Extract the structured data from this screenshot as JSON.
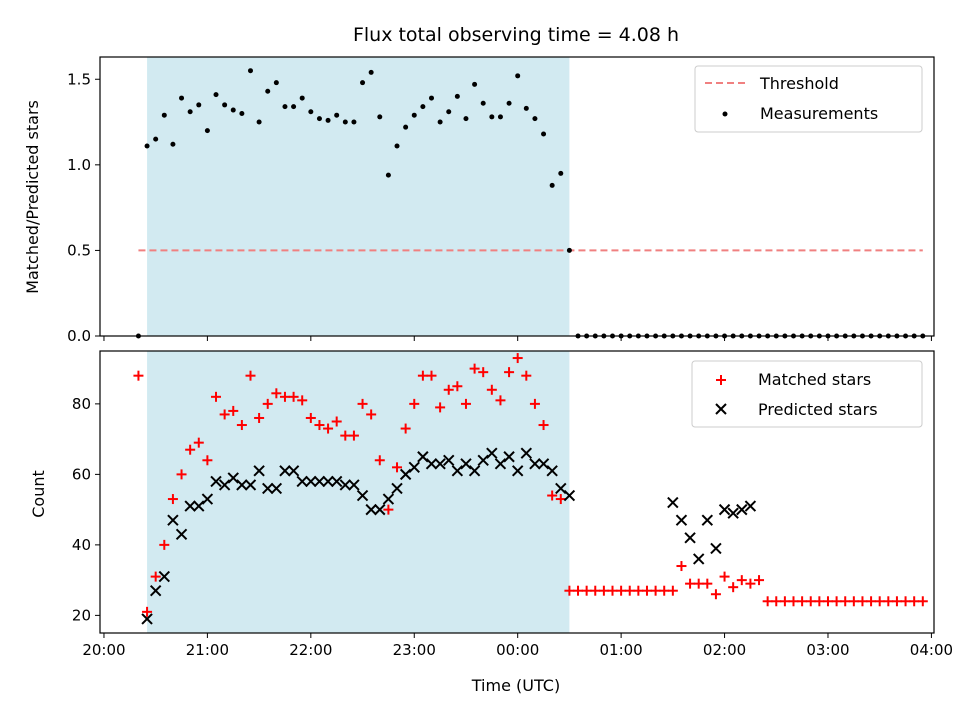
{
  "title": "Flux total observing time = 4.08 h",
  "colors": {
    "threshold": "#f08080",
    "measurements": "#000000",
    "matched": "#ff0000",
    "predicted": "#000000",
    "observing_span": "#add8e6"
  },
  "chart_data": [
    {
      "type": "scatter",
      "ylabel": "Matched/Predicted stars",
      "ylim": [
        0.0,
        1.63
      ],
      "yticks": [
        "0.0",
        "0.5",
        "1.0",
        "1.5"
      ],
      "ytick_values": [
        0.0,
        0.5,
        1.0,
        1.5
      ],
      "xlim": [
        -2.3,
        481.5
      ],
      "observing_span_minutes": [
        25,
        270
      ],
      "legend": {
        "position": "top-right",
        "entries": [
          "Threshold",
          "Measurements"
        ]
      },
      "threshold": {
        "name": "Threshold",
        "value": 0.5,
        "x_range": [
          20,
          475
        ]
      },
      "series": [
        {
          "name": "Measurements",
          "x": [
            20,
            25,
            30,
            35,
            40,
            45,
            50,
            55,
            60,
            65,
            70,
            75,
            80,
            85,
            90,
            95,
            100,
            105,
            110,
            115,
            120,
            125,
            130,
            135,
            140,
            145,
            150,
            155,
            160,
            165,
            170,
            175,
            180,
            185,
            190,
            195,
            200,
            205,
            210,
            215,
            220,
            225,
            230,
            235,
            240,
            245,
            250,
            255,
            260,
            265,
            270,
            275,
            280,
            285,
            290,
            295,
            300,
            305,
            310,
            315,
            320,
            325,
            330,
            335,
            340,
            345,
            350,
            355,
            360,
            365,
            370,
            375,
            380,
            385,
            390,
            395,
            400,
            405,
            410,
            415,
            420,
            425,
            430,
            435,
            440,
            445,
            450,
            455,
            460,
            465,
            470,
            475
          ],
          "y": [
            0.0,
            1.11,
            1.15,
            1.29,
            1.12,
            1.39,
            1.31,
            1.35,
            1.2,
            1.41,
            1.35,
            1.32,
            1.3,
            1.55,
            1.25,
            1.43,
            1.48,
            1.34,
            1.34,
            1.39,
            1.31,
            1.27,
            1.26,
            1.29,
            1.25,
            1.25,
            1.48,
            1.54,
            1.28,
            0.94,
            1.11,
            1.22,
            1.29,
            1.34,
            1.39,
            1.25,
            1.31,
            1.4,
            1.27,
            1.47,
            1.36,
            1.28,
            1.28,
            1.36,
            1.52,
            1.33,
            1.27,
            1.18,
            0.88,
            0.95,
            0.5,
            0.0,
            0.0,
            0.0,
            0.0,
            0.0,
            0.0,
            0.0,
            0.0,
            0.0,
            0.0,
            0.0,
            0.0,
            0.0,
            0.0,
            0.0,
            0.0,
            0.0,
            0.0,
            0.0,
            0.0,
            0.0,
            0.0,
            0.0,
            0.0,
            0.0,
            0.0,
            0.0,
            0.0,
            0.0,
            0.0,
            0.0,
            0.0,
            0.0,
            0.0,
            0.0,
            0.0,
            0.0,
            0.0,
            0.0,
            0.0,
            0.0
          ]
        }
      ]
    },
    {
      "type": "scatter",
      "ylabel": "Count",
      "xlabel": "Time (UTC)",
      "ylim": [
        15,
        95
      ],
      "yticks": [
        "20",
        "40",
        "60",
        "80"
      ],
      "ytick_values": [
        20,
        40,
        60,
        80
      ],
      "xlim": [
        -2.3,
        481.5
      ],
      "xticks": [
        "20:00",
        "21:00",
        "22:00",
        "23:00",
        "00:00",
        "01:00",
        "02:00",
        "03:00",
        "04:00"
      ],
      "xtick_values": [
        0,
        60,
        120,
        180,
        240,
        300,
        360,
        420,
        480
      ],
      "observing_span_minutes": [
        25,
        270
      ],
      "legend": {
        "position": "top-right",
        "entries": [
          "Matched stars",
          "Predicted stars"
        ]
      },
      "series": [
        {
          "name": "Matched stars",
          "x": [
            20,
            25,
            30,
            35,
            40,
            45,
            50,
            55,
            60,
            65,
            70,
            75,
            80,
            85,
            90,
            95,
            100,
            105,
            110,
            115,
            120,
            125,
            130,
            135,
            140,
            145,
            150,
            155,
            160,
            165,
            170,
            175,
            180,
            185,
            190,
            195,
            200,
            205,
            210,
            215,
            220,
            225,
            230,
            235,
            240,
            245,
            250,
            255,
            260,
            265,
            270,
            275,
            280,
            285,
            290,
            295,
            300,
            305,
            310,
            315,
            320,
            325,
            330,
            335,
            340,
            345,
            350,
            355,
            360,
            365,
            370,
            375,
            380,
            385,
            390,
            395,
            400,
            405,
            410,
            415,
            420,
            425,
            430,
            435,
            440,
            445,
            450,
            455,
            460,
            465,
            470,
            475
          ],
          "y": [
            88,
            21,
            31,
            40,
            53,
            60,
            67,
            69,
            64,
            82,
            77,
            78,
            74,
            88,
            76,
            80,
            83,
            82,
            82,
            81,
            76,
            74,
            73,
            75,
            71,
            71,
            80,
            77,
            64,
            50,
            62,
            73,
            80,
            88,
            88,
            79,
            84,
            85,
            80,
            90,
            89,
            84,
            81,
            89,
            93,
            88,
            80,
            74,
            54,
            53,
            27,
            27,
            27,
            27,
            27,
            27,
            27,
            27,
            27,
            27,
            27,
            27,
            27,
            34,
            29,
            29,
            29,
            26,
            31,
            28,
            30,
            29,
            30,
            24,
            24,
            24,
            24,
            24,
            24,
            24,
            24,
            24,
            24,
            24,
            24,
            24,
            24,
            24,
            24,
            24,
            24,
            24
          ]
        },
        {
          "name": "Predicted stars",
          "x": [
            25,
            30,
            35,
            40,
            45,
            50,
            55,
            60,
            65,
            70,
            75,
            80,
            85,
            90,
            95,
            100,
            105,
            110,
            115,
            120,
            125,
            130,
            135,
            140,
            145,
            150,
            155,
            160,
            165,
            170,
            175,
            180,
            185,
            190,
            195,
            200,
            205,
            210,
            215,
            220,
            225,
            230,
            235,
            240,
            245,
            250,
            255,
            260,
            265,
            270,
            330,
            335,
            340,
            345,
            350,
            355,
            360,
            365,
            370,
            375
          ],
          "y": [
            19,
            27,
            31,
            47,
            43,
            51,
            51,
            53,
            58,
            57,
            59,
            57,
            57,
            61,
            56,
            56,
            61,
            61,
            58,
            58,
            58,
            58,
            58,
            57,
            57,
            54,
            50,
            50,
            53,
            56,
            60,
            62,
            65,
            63,
            63,
            64,
            61,
            63,
            61,
            64,
            66,
            63,
            65,
            61,
            66,
            63,
            63,
            61,
            56,
            54,
            52,
            47,
            42,
            36,
            47,
            39,
            50,
            49,
            50,
            51
          ]
        }
      ]
    }
  ]
}
